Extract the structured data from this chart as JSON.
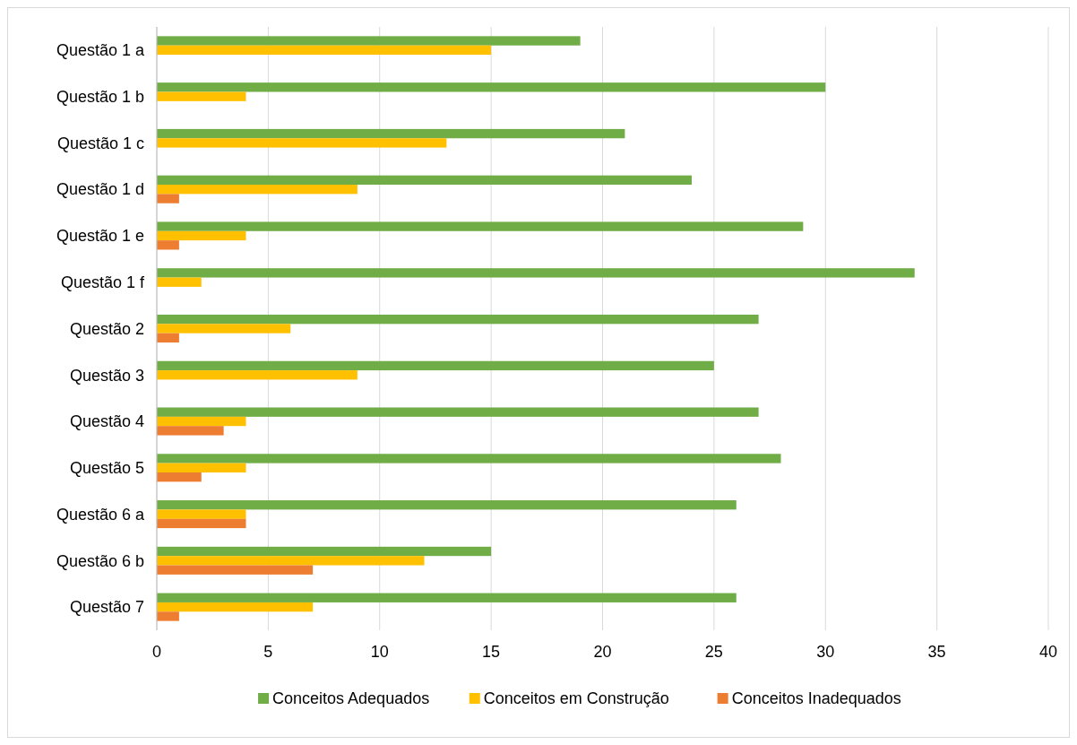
{
  "chart_data": {
    "type": "bar",
    "orientation": "horizontal",
    "categories": [
      "Questão 1 a",
      "Questão 1 b",
      "Questão 1 c",
      "Questão 1 d",
      "Questão 1 e",
      "Questão 1 f",
      "Questão 2",
      "Questão 3",
      "Questão 4",
      "Questão 5",
      "Questão 6 a",
      "Questão 6 b",
      "Questão 7"
    ],
    "series": [
      {
        "name": "Conceitos Adequados",
        "color": "#70ad47",
        "values": [
          19,
          30,
          21,
          24,
          29,
          34,
          27,
          25,
          27,
          28,
          26,
          15,
          26
        ]
      },
      {
        "name": "Conceitos em Construção",
        "color": "#ffc000",
        "values": [
          15,
          4,
          13,
          9,
          4,
          2,
          6,
          9,
          4,
          4,
          4,
          12,
          7
        ]
      },
      {
        "name": "Conceitos Inadequados",
        "color": "#ed7d31",
        "values": [
          null,
          null,
          null,
          1,
          1,
          null,
          1,
          null,
          3,
          2,
          4,
          7,
          1
        ]
      }
    ],
    "xlim": [
      0,
      40
    ],
    "xticks": [
      0,
      5,
      10,
      15,
      20,
      25,
      30,
      35,
      40
    ],
    "grid": "x",
    "legend": "bottom"
  }
}
